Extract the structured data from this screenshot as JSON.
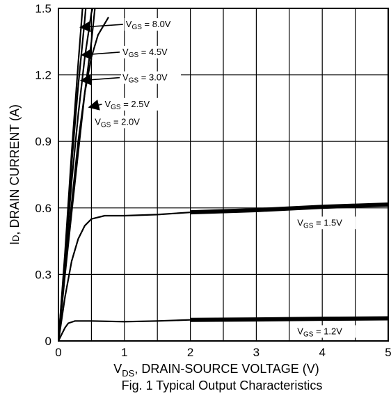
{
  "chart_data": {
    "type": "line",
    "caption": "Fig. 1 Typical Output Characteristics",
    "xlabel": {
      "main": "V",
      "sub": "DS",
      "rest": ", DRAIN-SOURCE VOLTAGE (V)"
    },
    "ylabel": {
      "main": "I",
      "sub": "D",
      "rest": ", DRAIN CURRENT (A)"
    },
    "xlim": [
      0,
      5
    ],
    "ylim": [
      0,
      1.5
    ],
    "xticks": [
      0,
      1,
      2,
      3,
      4,
      5
    ],
    "xtick_labels": [
      "0",
      "1",
      "2",
      "3",
      "4",
      "5"
    ],
    "yticks": [
      0,
      0.3,
      0.6,
      0.9,
      1.2,
      1.5
    ],
    "ytick_labels": [
      "0",
      "0.3",
      "0.6",
      "0.9",
      "1.2",
      "1.5"
    ],
    "grid": true,
    "series": [
      {
        "name": "VGS = 8.0V",
        "label_main": "V",
        "label_sub": "GS",
        "label_rest": " = 8.0V",
        "points": [
          [
            0,
            0
          ],
          [
            0.1,
            0.4
          ],
          [
            0.2,
            0.85
          ],
          [
            0.3,
            1.25
          ],
          [
            0.37,
            1.52
          ]
        ]
      },
      {
        "name": "VGS = 4.5V",
        "label_main": "V",
        "label_sub": "GS",
        "label_rest": " = 4.5V",
        "points": [
          [
            0,
            0
          ],
          [
            0.1,
            0.38
          ],
          [
            0.2,
            0.8
          ],
          [
            0.3,
            1.15
          ],
          [
            0.4,
            1.45
          ],
          [
            0.42,
            1.52
          ]
        ]
      },
      {
        "name": "VGS = 3.0V",
        "label_main": "V",
        "label_sub": "GS",
        "label_rest": " = 3.0V",
        "points": [
          [
            0,
            0
          ],
          [
            0.1,
            0.35
          ],
          [
            0.2,
            0.72
          ],
          [
            0.3,
            1.02
          ],
          [
            0.4,
            1.28
          ],
          [
            0.5,
            1.48
          ],
          [
            0.54,
            1.52
          ]
        ]
      },
      {
        "name": "VGS = 2.5V",
        "label_main": "V",
        "label_sub": "GS",
        "label_rest": " = 2.5V",
        "points": [
          [
            0,
            0
          ],
          [
            0.1,
            0.32
          ],
          [
            0.2,
            0.62
          ],
          [
            0.3,
            0.9
          ],
          [
            0.4,
            1.12
          ],
          [
            0.5,
            1.28
          ],
          [
            0.6,
            1.38
          ],
          [
            0.76,
            1.46
          ]
        ]
      },
      {
        "name": "VGS = 2.0V",
        "label_main": "V",
        "label_sub": "GS",
        "label_rest": " = 2.0V",
        "points": [
          [
            0,
            0
          ],
          [
            0.1,
            0.3
          ],
          [
            0.2,
            0.58
          ],
          [
            0.3,
            0.85
          ],
          [
            0.4,
            1.12
          ],
          [
            0.5,
            1.35
          ],
          [
            0.56,
            1.52
          ]
        ]
      },
      {
        "name": "VGS = 1.5V",
        "label_main": "V",
        "label_sub": "GS",
        "label_rest": " = 1.5V",
        "points": [
          [
            0,
            0
          ],
          [
            0.1,
            0.2
          ],
          [
            0.2,
            0.36
          ],
          [
            0.3,
            0.46
          ],
          [
            0.4,
            0.52
          ],
          [
            0.5,
            0.55
          ],
          [
            0.7,
            0.565
          ],
          [
            1.0,
            0.565
          ],
          [
            1.5,
            0.57
          ],
          [
            2.0,
            0.58
          ],
          [
            2.5,
            0.585
          ],
          [
            3.0,
            0.59
          ],
          [
            3.5,
            0.6
          ],
          [
            4.0,
            0.605
          ],
          [
            4.5,
            0.61
          ],
          [
            5.0,
            0.615
          ]
        ]
      },
      {
        "name": "VGS = 1.2V",
        "label_main": "V",
        "label_sub": "GS",
        "label_rest": " = 1.2V",
        "points": [
          [
            0,
            0
          ],
          [
            0.05,
            0.03
          ],
          [
            0.1,
            0.06
          ],
          [
            0.15,
            0.08
          ],
          [
            0.25,
            0.09
          ],
          [
            0.5,
            0.09
          ],
          [
            1.0,
            0.087
          ],
          [
            1.5,
            0.09
          ],
          [
            2.0,
            0.095
          ],
          [
            3.0,
            0.097
          ],
          [
            4.0,
            0.1
          ],
          [
            5.0,
            0.102
          ]
        ]
      }
    ]
  }
}
